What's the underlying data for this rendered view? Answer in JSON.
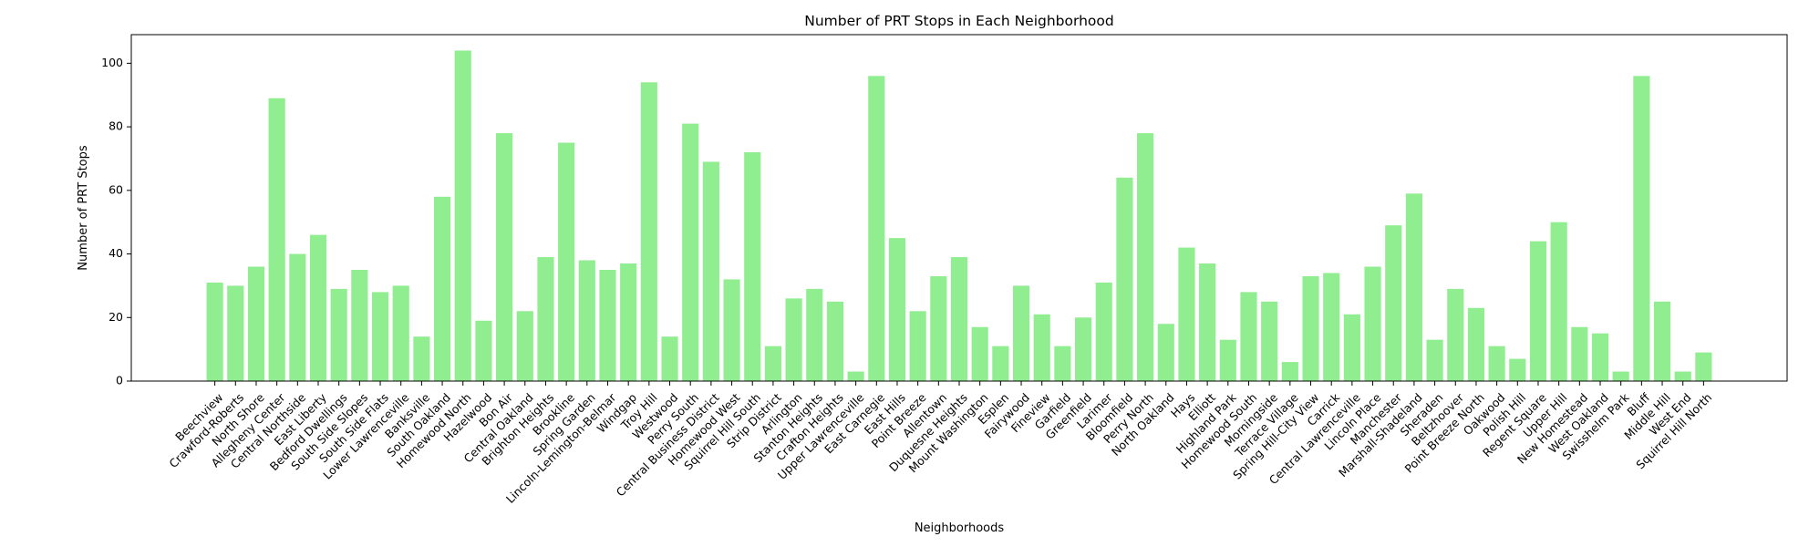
{
  "chart_data": {
    "type": "bar",
    "title": "Number of PRT Stops in Each Neighborhood",
    "xlabel": "Neighborhoods",
    "ylabel": "Number of PRT Stops",
    "ylim": [
      0,
      109
    ],
    "yticks": [
      0,
      20,
      40,
      60,
      80,
      100
    ],
    "grid": false,
    "bar_color": "#90ee90",
    "categories": [
      "Beechview",
      "Crawford-Roberts",
      "North Shore",
      "Allegheny Center",
      "Central Northside",
      "East Liberty",
      "Bedford Dwellings",
      "South Side Slopes",
      "South Side Flats",
      "Lower Lawrenceville",
      "Banksville",
      "South Oakland",
      "Homewood North",
      "Hazelwood",
      "Bon Air",
      "Central Oakland",
      "Brighton Heights",
      "Brookline",
      "Spring Garden",
      "Lincoln-Lemington-Belmar",
      "Windgap",
      "Troy Hill",
      "Westwood",
      "Perry South",
      "Central Business District",
      "Homewood West",
      "Squirrel Hill South",
      "Strip District",
      "Arlington",
      "Stanton Heights",
      "Crafton Heights",
      "Upper Lawrenceville",
      "East Carnegie",
      "East Hills",
      "Point Breeze",
      "Allentown",
      "Duquesne Heights",
      "Mount Washington",
      "Esplen",
      "Fairywood",
      "Fineview",
      "Garfield",
      "Greenfield",
      "Larimer",
      "Bloomfield",
      "Perry North",
      "North Oakland",
      "Hays",
      "Elliott",
      "Highland Park",
      "Homewood South",
      "Morningside",
      "Terrace Village",
      "Spring Hill-City View",
      "Carrick",
      "Central Lawrenceville",
      "Lincoln Place",
      "Manchester",
      "Marshall-Shadeland",
      "Sheraden",
      "Beltzhoover",
      "Point Breeze North",
      "Oakwood",
      "Polish Hill",
      "Regent Square",
      "Upper Hill",
      "New Homestead",
      "West Oakland",
      "Swisshelm Park",
      "Bluff",
      "Middle Hill",
      "West End",
      "Squirrel Hill North"
    ],
    "series": [
      {
        "values": [
          31,
          30,
          36,
          89,
          40,
          46,
          29,
          35,
          28,
          30,
          14,
          58,
          104,
          19,
          78,
          22,
          39,
          75,
          38,
          35,
          37,
          94,
          14,
          81,
          69,
          32,
          72,
          11,
          26,
          29,
          25,
          3,
          96,
          45,
          22,
          33,
          39,
          17,
          11,
          30,
          21,
          11,
          20,
          31,
          64,
          78,
          18,
          42,
          37,
          13,
          28,
          25,
          6,
          33,
          34,
          21,
          36,
          49,
          59,
          13,
          29,
          23,
          11,
          7,
          44,
          50,
          17,
          15,
          3,
          96,
          25,
          3,
          9
        ]
      }
    ]
  }
}
